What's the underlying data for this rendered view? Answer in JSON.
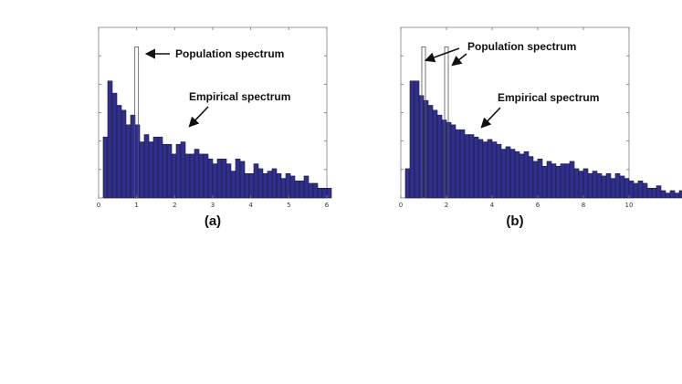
{
  "colors": {
    "bar_fill": "#312f8c",
    "bar_edge": "#1a1a3a",
    "population_line": "#555555",
    "axis": "#777777"
  },
  "chart_data": [
    {
      "type": "bar",
      "panel_label": "(a)",
      "xlim": [
        0,
        6
      ],
      "x_ticks": [
        "0",
        "1",
        "2",
        "3",
        "4",
        "5",
        "6"
      ],
      "bin_width": 0.12,
      "x_start": 0.12,
      "values": [
        25,
        48,
        43,
        38,
        36,
        30,
        34,
        30,
        23,
        26,
        23,
        25,
        25,
        22,
        22,
        18,
        22,
        23,
        18,
        18,
        20,
        18,
        18,
        16,
        14,
        16,
        16,
        14,
        11,
        16,
        15,
        10,
        10,
        14,
        12,
        10,
        11,
        12,
        10,
        8,
        10,
        9,
        7,
        7,
        9,
        6,
        6,
        4,
        4,
        4
      ],
      "population_bars": [
        {
          "x": 1.0,
          "height": 62
        }
      ],
      "annotations": [
        "Population spectrum",
        "Empirical spectrum"
      ]
    },
    {
      "type": "bar",
      "panel_label": "(b)",
      "xlim": [
        0,
        10
      ],
      "x_ticks": [
        "0",
        "2",
        "4",
        "6",
        "8",
        "10"
      ],
      "bin_width": 0.2,
      "x_start": 0.2,
      "values": [
        12,
        48,
        48,
        42,
        40,
        38,
        36,
        34,
        32,
        31,
        30,
        28,
        28,
        26,
        26,
        25,
        24,
        23,
        24,
        23,
        22,
        20,
        21,
        20,
        19,
        18,
        19,
        17,
        15,
        16,
        13,
        15,
        14,
        13,
        14,
        14,
        15,
        12,
        11,
        12,
        10,
        11,
        10,
        9,
        10,
        8,
        10,
        9,
        8,
        7,
        6,
        7,
        6,
        4,
        4,
        5,
        3,
        2,
        3,
        2,
        3,
        2,
        1
      ],
      "population_bars": [
        {
          "x": 1.0,
          "height": 62
        },
        {
          "x": 2.0,
          "height": 62
        }
      ],
      "annotations": [
        "Population spectrum",
        "Empirical spectrum"
      ]
    }
  ]
}
